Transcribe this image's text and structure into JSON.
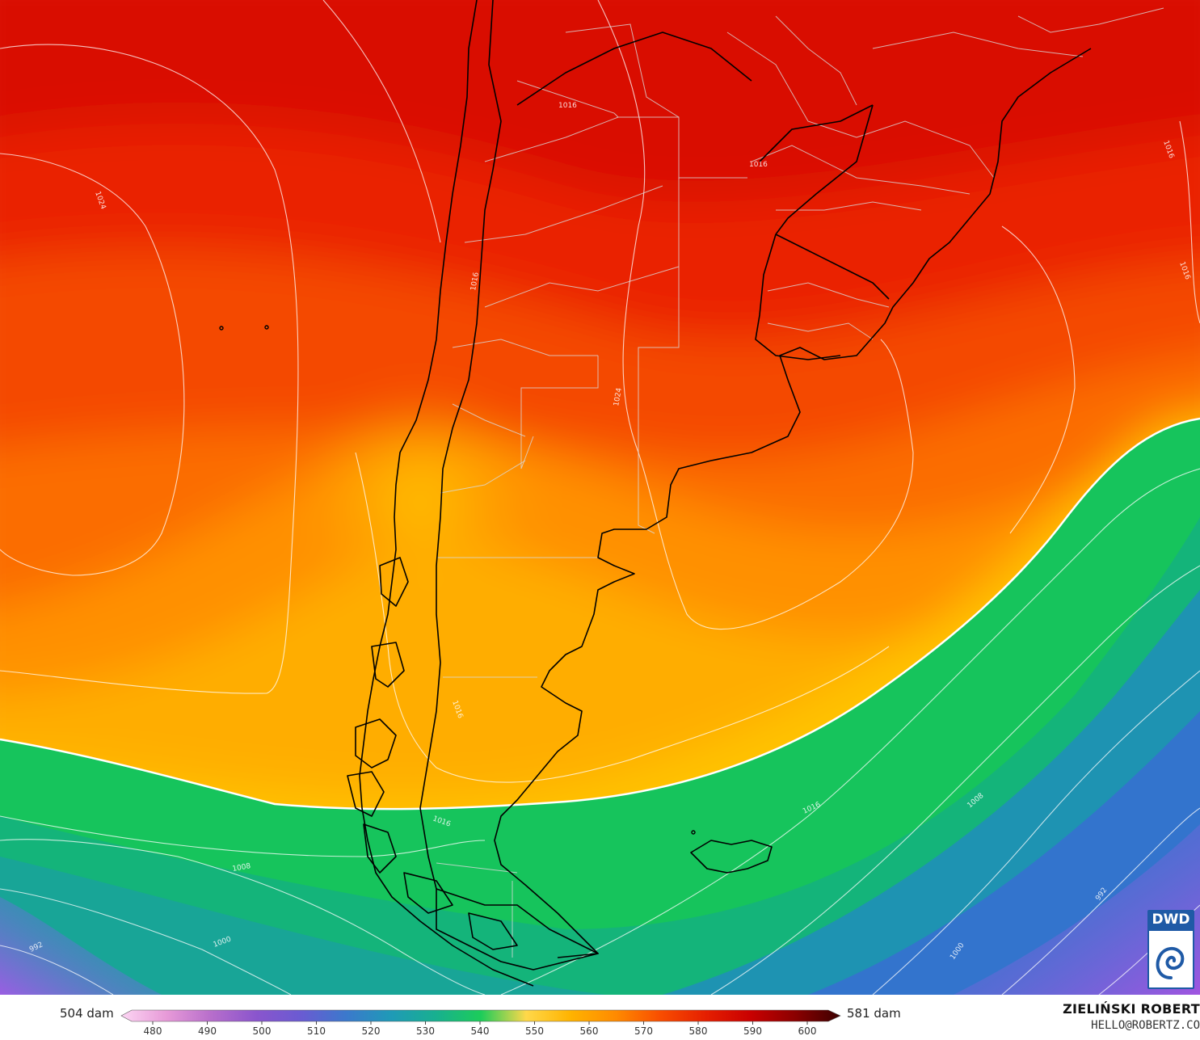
{
  "colorbar": {
    "min_label": "504 dam",
    "max_label": "581 dam",
    "ticks": [
      "480",
      "490",
      "500",
      "510",
      "520",
      "530",
      "540",
      "550",
      "560",
      "570",
      "580",
      "590",
      "600"
    ],
    "stops": [
      "#fcd6f3",
      "#e79ad8",
      "#b76ecb",
      "#8a55cd",
      "#6a5bd2",
      "#3b79cc",
      "#1f9ab7",
      "#18b08f",
      "#1ccc5a",
      "#ffd84a",
      "#ffb300",
      "#ff8a00",
      "#f84d00",
      "#e51f00",
      "#c90000",
      "#8a0000",
      "#3b0000"
    ]
  },
  "credit": {
    "name": "ZIELIŃSKI ROBERT",
    "email": "HELLO@ROBERTZ.CO"
  },
  "logo": {
    "text": "DWD"
  },
  "isobar_labels": {
    "l1024a": "1024",
    "l1024b": "1024",
    "l1016a": "1016",
    "l1016b": "1016",
    "l1016c": "1016",
    "l1016d": "1016",
    "l1016e": "1016",
    "l1016f": "1016",
    "l1016g": "1016",
    "l1016h": "1016",
    "l1008a": "1008",
    "l1008b": "1008",
    "l1000a": "1000",
    "l1000b": "1000",
    "l992a": "992",
    "l992b": "992"
  }
}
